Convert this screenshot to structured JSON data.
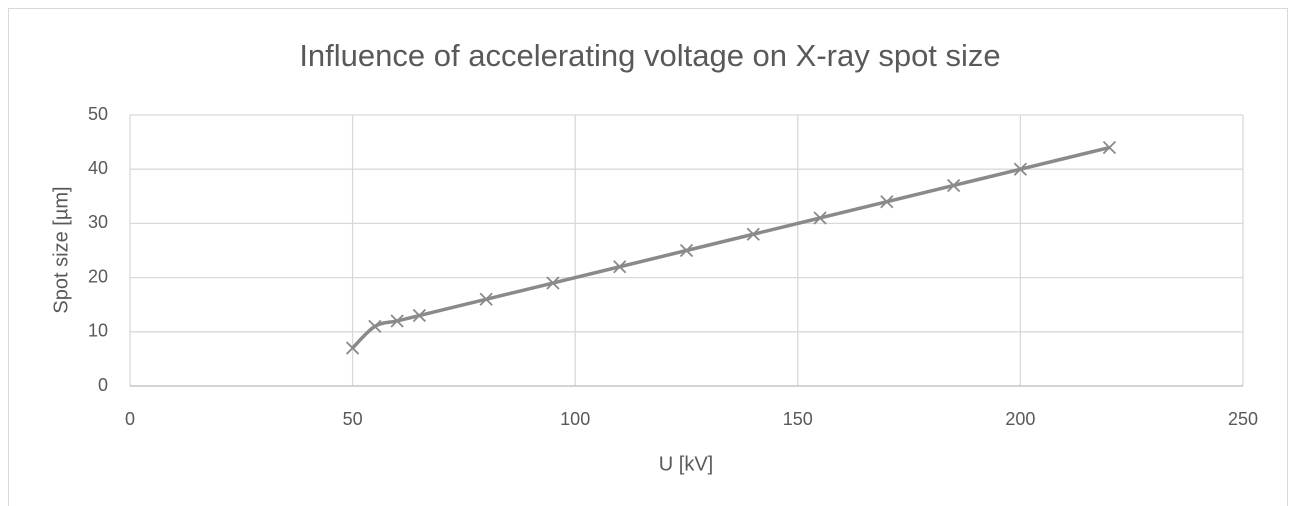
{
  "chart_data": {
    "type": "scatter",
    "title": "Influence of accelerating voltage on X-ray spot size",
    "x_label": "U [kV]",
    "y_label": "Spot size [µm]",
    "x": [
      50,
      55,
      60,
      65,
      80,
      95,
      110,
      125,
      140,
      155,
      170,
      185,
      200,
      220
    ],
    "values": [
      7,
      11,
      12,
      13,
      16,
      19,
      22,
      25,
      28,
      31,
      34,
      37,
      40,
      44
    ],
    "color": "#8a8a8a",
    "smooth": true,
    "marker": "x",
    "xlim": [
      0,
      250
    ],
    "xticks": [
      0,
      50,
      100,
      150,
      200,
      250
    ],
    "ylim": [
      0,
      50
    ],
    "yticks": [
      0,
      10,
      20,
      30,
      40,
      50
    ],
    "grid": true
  }
}
